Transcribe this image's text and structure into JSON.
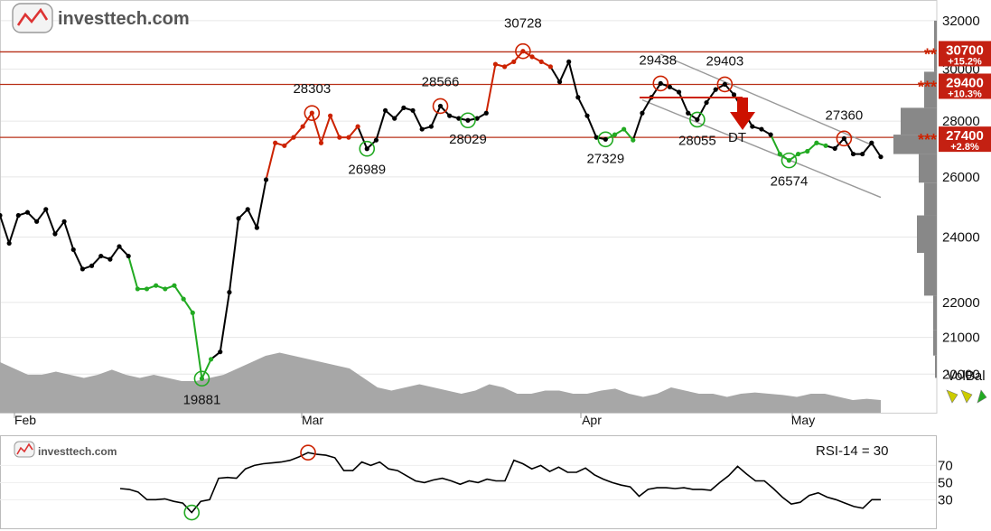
{
  "logo": {
    "text": "investtech.com"
  },
  "chart_data": [
    {
      "type": "line",
      "x_axis_labels": [
        "Feb",
        "Mar",
        "Apr",
        "May"
      ],
      "y_ticks": [
        20000,
        21000,
        22000,
        24000,
        26000,
        28000,
        30000,
        32000
      ],
      "y_tick_labels": [
        "20000",
        "21000",
        "22000",
        "24000",
        "26000",
        "28000",
        "30000",
        "32000"
      ],
      "ylim": [
        19000,
        32500
      ],
      "y_scale": "log",
      "series": [
        {
          "values": [
            24700,
            23800,
            24700,
            24800,
            24500,
            24900,
            24100,
            24500,
            23600,
            23000,
            23100,
            23400,
            23300,
            23700,
            23400,
            22400,
            22400,
            22500,
            22400,
            22500,
            22100,
            21700,
            19881,
            20400,
            20600,
            22300,
            24600,
            24900,
            24300,
            25900,
            27200,
            27100,
            27400,
            27800,
            28303,
            27200,
            28200,
            27400,
            27400,
            27800,
            26989,
            27300,
            28400,
            28100,
            28500,
            28400,
            27700,
            27800,
            28566,
            28200,
            28100,
            28029,
            28100,
            28300,
            30200,
            30100,
            30300,
            30728,
            30500,
            30300,
            30100,
            29500,
            30300,
            28900,
            28200,
            27400,
            27329,
            27500,
            27700,
            27300,
            28300,
            28900,
            29438,
            29300,
            29100,
            28300,
            28055,
            28700,
            29200,
            29403,
            29000,
            28400,
            27800,
            27700,
            27500,
            26800,
            26574,
            26800,
            26900,
            27200,
            27100,
            27000,
            27360,
            26800,
            26800,
            27200,
            26700
          ],
          "colors": "black=neutral, red=overbought/rising, green=falling"
        }
      ],
      "segment_colors": {
        "0-14": "#000000",
        "15-23": "#22aa22",
        "24-29": "#000000",
        "30-39": "#cc2200",
        "40-42": "#000000",
        "43-47": "#000000",
        "48-53": "#000000",
        "54-60": "#cc2200",
        "61-66": "#000000",
        "67-69": "#22aa22",
        "70-84": "#000000",
        "85-90": "#22aa22",
        "91-96": "#000000"
      },
      "peak_labels": [
        "30728",
        "29438",
        "29403",
        "28303",
        "28566",
        "27360",
        "26989",
        "28029",
        "27329",
        "28055",
        "26574",
        "19881"
      ],
      "resistance_levels": [
        {
          "value": 30700,
          "label": "30700",
          "pct": "+15.2%",
          "stars": "**"
        },
        {
          "value": 29400,
          "label": "29400",
          "pct": "+10.3%",
          "stars": "***"
        },
        {
          "value": 27400,
          "label": "27400",
          "pct": "+2.8%",
          "stars": "***"
        }
      ],
      "signal_label": "DT",
      "volbal_label": "VolBal",
      "volume": [
        0.8,
        0.7,
        0.6,
        0.6,
        0.65,
        0.6,
        0.55,
        0.6,
        0.68,
        0.6,
        0.55,
        0.6,
        0.55,
        0.5,
        0.5,
        0.55,
        0.6,
        0.7,
        0.8,
        0.9,
        0.95,
        0.9,
        0.85,
        0.8,
        0.75,
        0.7,
        0.55,
        0.4,
        0.35,
        0.4,
        0.45,
        0.4,
        0.35,
        0.3,
        0.35,
        0.45,
        0.4,
        0.3,
        0.3,
        0.35,
        0.35,
        0.3,
        0.3,
        0.35,
        0.38,
        0.3,
        0.25,
        0.3,
        0.4,
        0.35,
        0.3,
        0.3,
        0.25,
        0.3,
        0.32,
        0.3,
        0.28,
        0.25,
        0.3,
        0.3,
        0.25,
        0.2,
        0.22,
        0.2
      ]
    },
    {
      "type": "line",
      "title": "RSI-14 = 30",
      "y_ticks": [
        30,
        50,
        70
      ],
      "y_tick_labels": [
        "30",
        "50",
        "70"
      ],
      "ylim": [
        5,
        100
      ],
      "series": [
        {
          "values": [
            43,
            42,
            39,
            30,
            30,
            31,
            28,
            26,
            15,
            28,
            30,
            55,
            56,
            55,
            66,
            70,
            72,
            73,
            74,
            76,
            80,
            85,
            83,
            82,
            79,
            64,
            64,
            74,
            70,
            74,
            66,
            64,
            58,
            52,
            50,
            53,
            55,
            52,
            48,
            52,
            50,
            54,
            52,
            52,
            76,
            72,
            66,
            70,
            63,
            68,
            62,
            62,
            67,
            59,
            54,
            50,
            47,
            45,
            34,
            42,
            44,
            44,
            43,
            44,
            42,
            42,
            41,
            50,
            58,
            69,
            60,
            52,
            52,
            43,
            33,
            25,
            27,
            35,
            38,
            33,
            30,
            26,
            22,
            20,
            30,
            30
          ]
        }
      ],
      "circles": [
        {
          "index": 8,
          "color": "green"
        },
        {
          "index": 21,
          "color": "red"
        }
      ]
    }
  ]
}
